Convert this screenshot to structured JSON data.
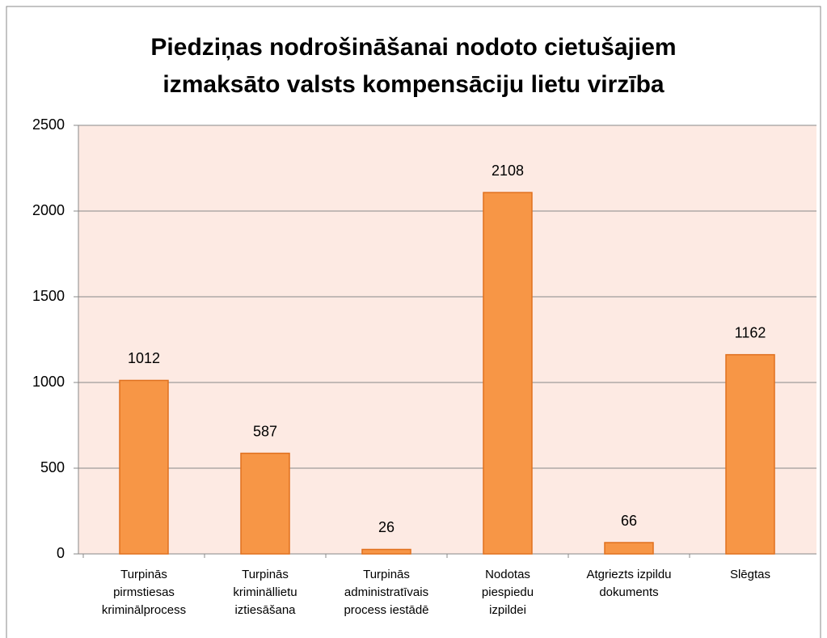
{
  "chart_data": {
    "type": "bar",
    "title": "Piedziņas nodrošināšanai nodoto cietušajiem\nizmaksāto valsts kompensāciju lietu virzība",
    "categories": [
      "Turpinās\npirmstiesas\nkriminālprocess",
      "Turpinās\nkriminällietu\niztiesāšana",
      "Turpinās\nadministratīvais\nprocess iestādē",
      "Nodotas\npiespiedu\nizpildei",
      "Atgriezts izpildu\ndokuments",
      "Slēgtas"
    ],
    "values": [
      1012,
      587,
      26,
      2108,
      66,
      1162
    ],
    "color": "#f79646",
    "ylim": [
      0,
      2500
    ],
    "yticks": [
      0,
      500,
      1000,
      1500,
      2000,
      2500
    ],
    "grid": true
  }
}
